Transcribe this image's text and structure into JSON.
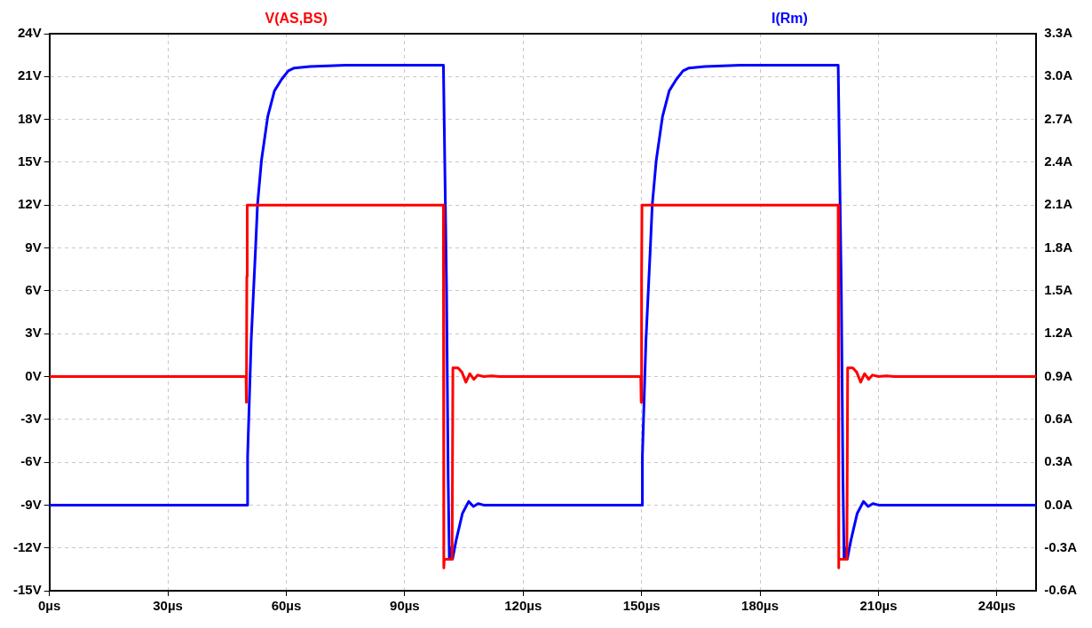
{
  "chart_data": {
    "type": "line",
    "xlim": [
      0,
      250
    ],
    "xticks": [
      {
        "value": 0,
        "label": "0µs"
      },
      {
        "value": 30,
        "label": "30µs"
      },
      {
        "value": 60,
        "label": "60µs"
      },
      {
        "value": 90,
        "label": "90µs"
      },
      {
        "value": 120,
        "label": "120µs"
      },
      {
        "value": 150,
        "label": "150µs"
      },
      {
        "value": 180,
        "label": "180µs"
      },
      {
        "value": 210,
        "label": "210µs"
      },
      {
        "value": 240,
        "label": "240µs"
      }
    ],
    "ylim": [
      -15,
      24
    ],
    "yticks": [
      {
        "value": -15,
        "label": "-15V"
      },
      {
        "value": -12,
        "label": "-12V"
      },
      {
        "value": -9,
        "label": "-9V"
      },
      {
        "value": -6,
        "label": "-6V"
      },
      {
        "value": -3,
        "label": "-3V"
      },
      {
        "value": 0,
        "label": "0V"
      },
      {
        "value": 3,
        "label": "3V"
      },
      {
        "value": 6,
        "label": "6V"
      },
      {
        "value": 9,
        "label": "9V"
      },
      {
        "value": 12,
        "label": "12V"
      },
      {
        "value": 15,
        "label": "15V"
      },
      {
        "value": 18,
        "label": "18V"
      },
      {
        "value": 21,
        "label": "21V"
      },
      {
        "value": 24,
        "label": "24V"
      }
    ],
    "y2lim": [
      -0.6,
      3.3
    ],
    "y2ticks": [
      {
        "value": -0.6,
        "label": "-0.6A"
      },
      {
        "value": -0.3,
        "label": "-0.3A"
      },
      {
        "value": 0,
        "label": "0.0A"
      },
      {
        "value": 0.3,
        "label": "0.3A"
      },
      {
        "value": 0.6,
        "label": "0.6A"
      },
      {
        "value": 0.9,
        "label": "0.9A"
      },
      {
        "value": 1.2,
        "label": "1.2A"
      },
      {
        "value": 1.5,
        "label": "1.5A"
      },
      {
        "value": 1.8,
        "label": "1.8A"
      },
      {
        "value": 2.1,
        "label": "2.1A"
      },
      {
        "value": 2.4,
        "label": "2.4A"
      },
      {
        "value": 2.7,
        "label": "2.7A"
      },
      {
        "value": 3.0,
        "label": "3.0A"
      },
      {
        "value": 3.3,
        "label": "3.3A"
      }
    ],
    "grid": true,
    "line_style": "solid",
    "marker": "none",
    "legend": "top",
    "series": [
      {
        "name": "V(AS,BS)",
        "color": "#ff0000",
        "axis": "y",
        "x": [
          0,
          49.8,
          49.9,
          50.0,
          50.1,
          99.8,
          99.9,
          100.0,
          102.0,
          102.2,
          103.5,
          104.5,
          105.5,
          106.5,
          107.5,
          108.5,
          110,
          112,
          114,
          149.8,
          149.9,
          150.0,
          150.1,
          199.8,
          199.9,
          200.0,
          202.0,
          202.2,
          203.5,
          204.5,
          205.5,
          206.5,
          207.5,
          208.5,
          210,
          212,
          214,
          250
        ],
        "values": [
          0,
          0,
          -1.8,
          7,
          12,
          12,
          -13.4,
          -12.8,
          -12.8,
          0.6,
          0.6,
          0.3,
          -0.4,
          0.2,
          -0.2,
          0.1,
          0,
          0.05,
          0,
          0,
          -1.8,
          7,
          12,
          12,
          -13.4,
          -12.8,
          -12.8,
          0.6,
          0.6,
          0.3,
          -0.4,
          0.2,
          -0.2,
          0.1,
          0,
          0.05,
          0,
          0
        ]
      },
      {
        "name": "I(Rm)",
        "color": "#0000ff",
        "axis": "y2",
        "x": [
          0,
          50.1,
          50.2,
          51.1,
          52.2,
          52.7,
          53.7,
          55.3,
          57,
          58.8,
          60.5,
          62,
          66,
          75,
          99.8,
          100.6,
          101.0,
          101.3,
          101.7,
          102.1,
          103,
          104.6,
          106.2,
          107.4,
          108.6,
          110,
          150.1,
          150.2,
          151.1,
          152.2,
          152.7,
          153.7,
          155.3,
          157,
          158.8,
          160.5,
          162,
          166,
          175,
          199.8,
          200.6,
          201.0,
          201.3,
          201.7,
          202.1,
          203,
          204.6,
          206.2,
          207.4,
          208.6,
          210,
          250
        ],
        "values": [
          0,
          0,
          0.34,
          1.15,
          1.79,
          2.1,
          2.41,
          2.72,
          2.9,
          2.98,
          3.04,
          3.06,
          3.07,
          3.08,
          3.08,
          1.5,
          0.2,
          -0.38,
          -0.3,
          -0.38,
          -0.25,
          -0.06,
          0.025,
          -0.01,
          0.01,
          0,
          0,
          0.34,
          1.15,
          1.79,
          2.1,
          2.41,
          2.72,
          2.9,
          2.98,
          3.04,
          3.06,
          3.07,
          3.08,
          3.08,
          1.5,
          0.2,
          -0.38,
          -0.3,
          -0.38,
          -0.25,
          -0.06,
          0.025,
          -0.01,
          0.01,
          0,
          0
        ]
      }
    ]
  }
}
